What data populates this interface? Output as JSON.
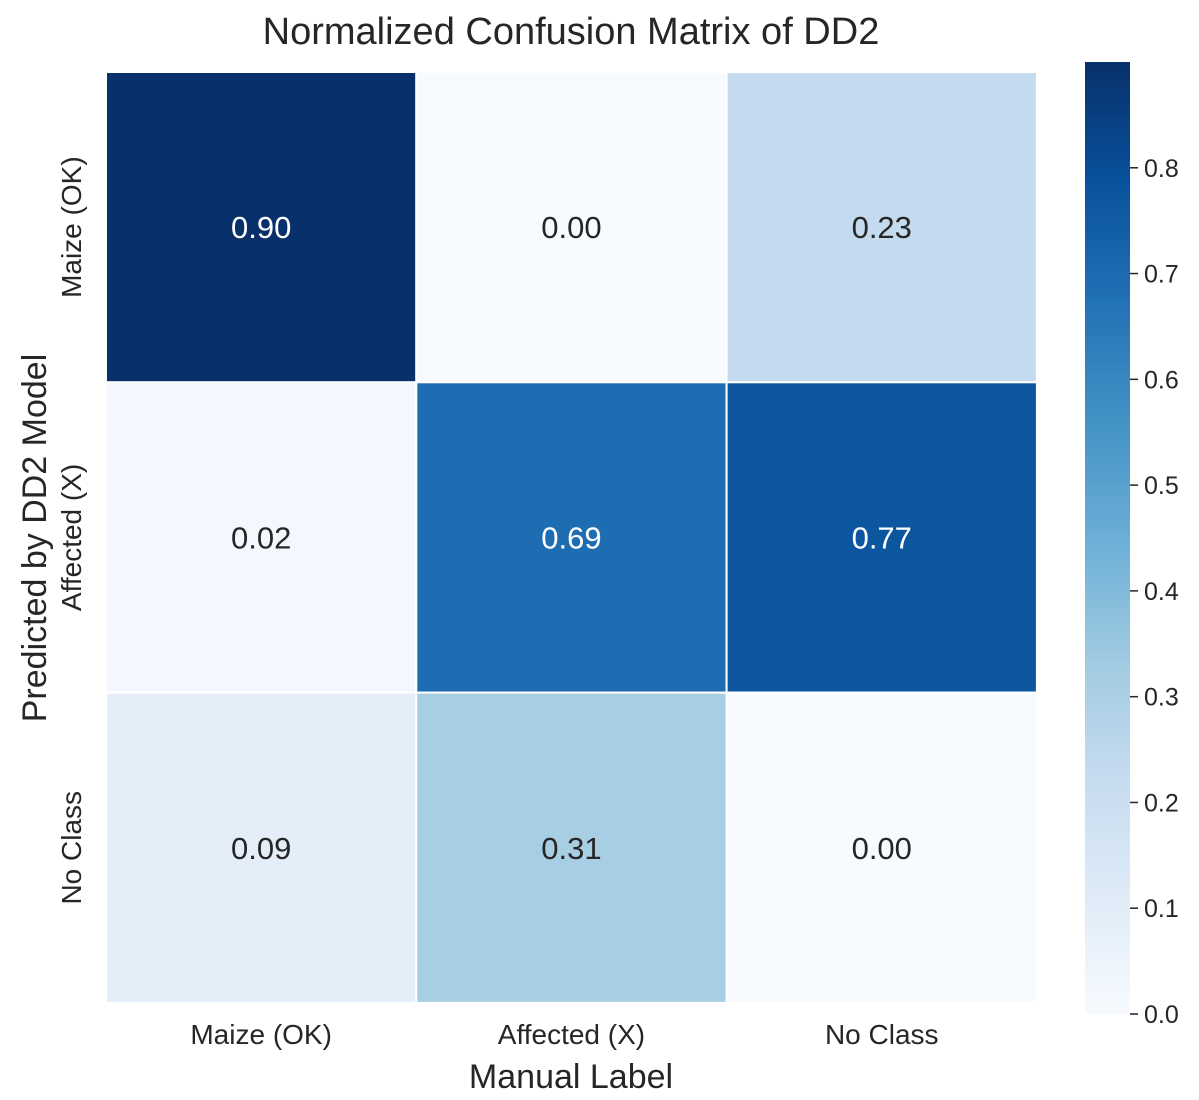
{
  "chart_data": {
    "type": "heatmap",
    "title": "Normalized Confusion Matrix of DD2",
    "xlabel": "Manual Label",
    "ylabel": "Predicted by DD2 Model",
    "x_categories": [
      "Maize (OK)",
      "Affected (X)",
      "No Class"
    ],
    "y_categories": [
      "Maize (OK)",
      "Affected (X)",
      "No Class"
    ],
    "values": [
      [
        0.9,
        0.0,
        0.23
      ],
      [
        0.02,
        0.69,
        0.77
      ],
      [
        0.09,
        0.31,
        0.0
      ]
    ],
    "cell_labels": [
      [
        "0.90",
        "0.00",
        "0.23"
      ],
      [
        "0.02",
        "0.69",
        "0.77"
      ],
      [
        "0.09",
        "0.31",
        "0.00"
      ]
    ],
    "colormap": "Blues",
    "vmin": 0.0,
    "vmax": 0.9,
    "colorbar": {
      "ticks": [
        0.0,
        0.1,
        0.2,
        0.3,
        0.4,
        0.5,
        0.6,
        0.7,
        0.8
      ],
      "tick_labels": [
        "0.0",
        "0.1",
        "0.2",
        "0.3",
        "0.4",
        "0.5",
        "0.6",
        "0.7",
        "0.8"
      ]
    }
  }
}
